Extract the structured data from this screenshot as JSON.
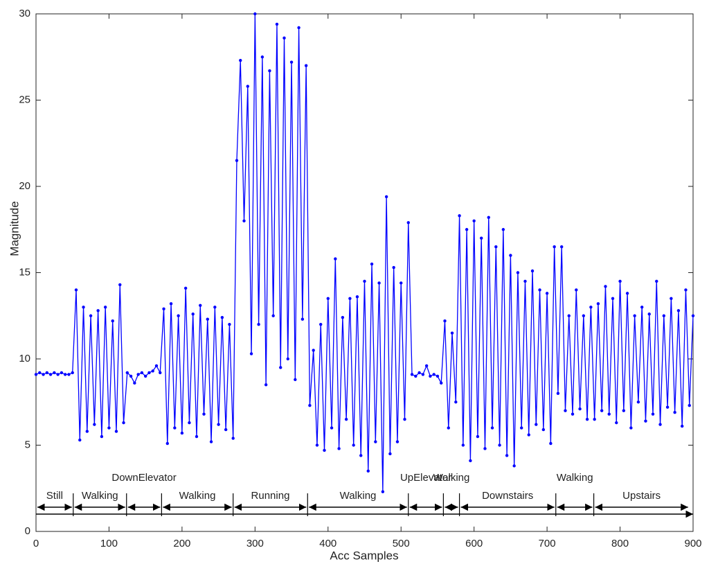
{
  "chart_data": {
    "type": "line",
    "xlabel": "Acc Samples",
    "ylabel": "Magnitude",
    "x": [
      0,
      5,
      10,
      15,
      20,
      25,
      30,
      35,
      40,
      45,
      50,
      55,
      60,
      65,
      70,
      75,
      80,
      85,
      90,
      95,
      100,
      105,
      110,
      115,
      120,
      125,
      130,
      135,
      140,
      145,
      150,
      155,
      160,
      165,
      170,
      175,
      180,
      185,
      190,
      195,
      200,
      205,
      210,
      215,
      220,
      225,
      230,
      235,
      240,
      245,
      250,
      255,
      260,
      265,
      270,
      275,
      280,
      285,
      290,
      295,
      300,
      305,
      310,
      315,
      320,
      325,
      330,
      335,
      340,
      345,
      350,
      355,
      360,
      365,
      370,
      375,
      380,
      385,
      390,
      395,
      400,
      405,
      410,
      415,
      420,
      425,
      430,
      435,
      440,
      445,
      450,
      455,
      460,
      465,
      470,
      475,
      480,
      485,
      490,
      495,
      500,
      505,
      510,
      515,
      520,
      525,
      530,
      535,
      540,
      545,
      550,
      555,
      560,
      565,
      570,
      575,
      580,
      585,
      590,
      595,
      600,
      605,
      610,
      615,
      620,
      625,
      630,
      635,
      640,
      645,
      650,
      655,
      660,
      665,
      670,
      675,
      680,
      685,
      690,
      695,
      700,
      705,
      710,
      715,
      720,
      725,
      730,
      735,
      740,
      745,
      750,
      755,
      760,
      765,
      770,
      775,
      780,
      785,
      790,
      795,
      800,
      805,
      810,
      815,
      820,
      825,
      830,
      835,
      840,
      845,
      850,
      855,
      860,
      865,
      870,
      875,
      880,
      885,
      890,
      895,
      900
    ],
    "series": [
      {
        "name": "Magnitude",
        "color": "#0000ff",
        "values": [
          9.1,
          9.2,
          9.1,
          9.2,
          9.1,
          9.2,
          9.1,
          9.2,
          9.1,
          9.1,
          9.2,
          14,
          5.3,
          13,
          5.8,
          12.5,
          6.2,
          12.8,
          5.5,
          13,
          6,
          12.2,
          5.8,
          14.3,
          6.3,
          9.2,
          9,
          8.6,
          9.1,
          9.2,
          9,
          9.2,
          9.3,
          9.6,
          9.2,
          12.9,
          5.1,
          13.2,
          6,
          12.5,
          5.7,
          14.1,
          6.3,
          12.6,
          5.5,
          13.1,
          6.8,
          12.3,
          5.2,
          13,
          6.2,
          12.4,
          5.9,
          12,
          5.4,
          21.5,
          27.3,
          18,
          25.8,
          10.3,
          30,
          12,
          27.5,
          8.5,
          26.7,
          12.5,
          29.4,
          9.5,
          28.6,
          10,
          27.2,
          8.8,
          29.2,
          12.3,
          27,
          7.3,
          10.5,
          5,
          12,
          4.7,
          13.5,
          6,
          15.8,
          4.8,
          12.4,
          6.5,
          13.5,
          5,
          13.6,
          4.4,
          14.5,
          3.5,
          15.5,
          5.2,
          14.4,
          2.3,
          19.4,
          4.5,
          15.3,
          5.2,
          14.4,
          6.5,
          17.9,
          9.1,
          9,
          9.2,
          9.1,
          9.6,
          9,
          9.1,
          9,
          8.6,
          12.2,
          6,
          11.5,
          7.5,
          18.3,
          5,
          17.5,
          4.1,
          18,
          5.5,
          17,
          4.8,
          18.2,
          6,
          16.5,
          5,
          17.5,
          4.4,
          16,
          3.8,
          15,
          6,
          14.5,
          5.6,
          15.1,
          6.2,
          14,
          5.9,
          13.8,
          5.1,
          16.5,
          8,
          16.5,
          7,
          12.5,
          6.8,
          14,
          7.1,
          12.5,
          6.5,
          13,
          6.5,
          13.2,
          7,
          14.2,
          6.8,
          13.5,
          6.3,
          14.5,
          7,
          13.8,
          6,
          12.5,
          7.5,
          13,
          6.4,
          12.6,
          6.8,
          14.5,
          6.2,
          12.5,
          7.2,
          13.5,
          6.9,
          12.8,
          6.1,
          14,
          7.3,
          12.5
        ]
      }
    ],
    "xlim": [
      0,
      900
    ],
    "xticks": [
      0,
      100,
      200,
      300,
      400,
      500,
      600,
      700,
      800,
      900
    ],
    "ylim": [
      0,
      30
    ],
    "yticks": [
      0,
      5,
      10,
      15,
      20,
      25,
      30
    ],
    "segments": [
      {
        "label": "Still",
        "start": 0,
        "end": 51
      },
      {
        "label": "Walking",
        "start": 51,
        "end": 124
      },
      {
        "label": "DownElevator",
        "start": 124,
        "end": 172
      },
      {
        "label": "Walking",
        "start": 172,
        "end": 270
      },
      {
        "label": "Running",
        "start": 270,
        "end": 372
      },
      {
        "label": "Walking",
        "start": 372,
        "end": 510
      },
      {
        "label": "UpElevator",
        "start": 510,
        "end": 558
      },
      {
        "label": "Walking",
        "start": 558,
        "end": 580
      },
      {
        "label": "Downstairs",
        "start": 580,
        "end": 712
      },
      {
        "label": "Walking",
        "start": 712,
        "end": 764
      },
      {
        "label": "Upstairs",
        "start": 764,
        "end": 895
      }
    ]
  }
}
